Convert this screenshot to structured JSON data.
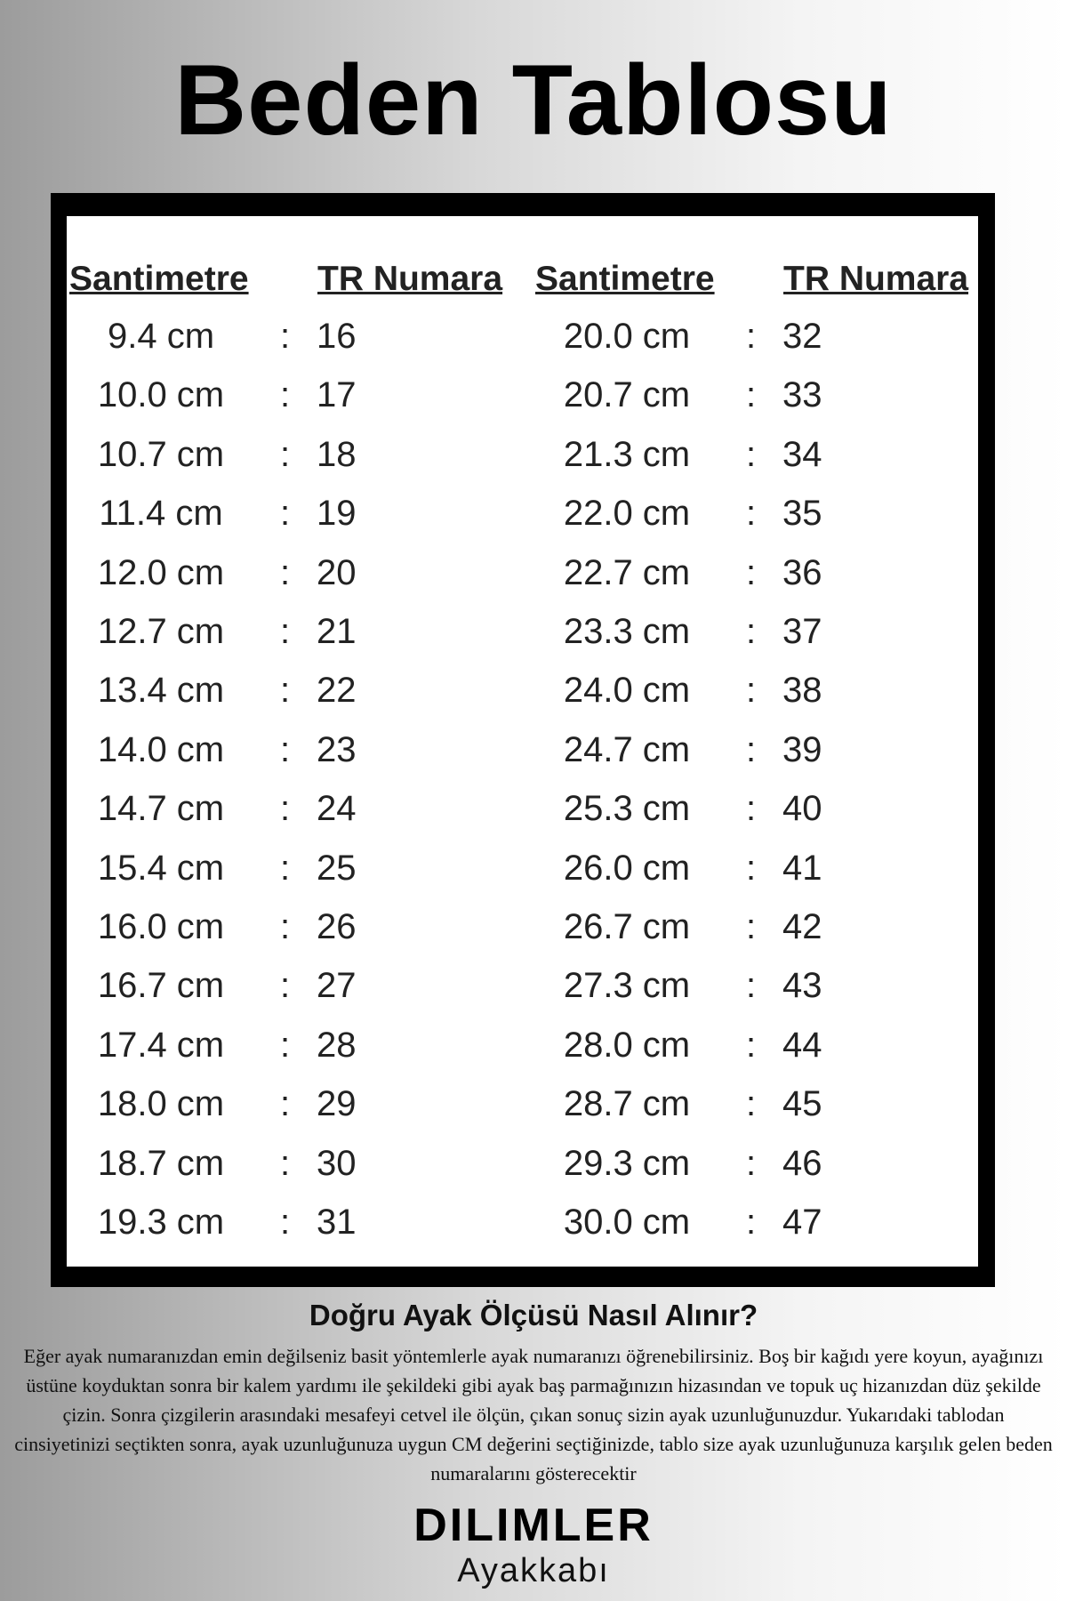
{
  "header": {
    "title": "Beden Tablosu"
  },
  "table": {
    "headers": [
      "Santimetre",
      "TR Numara",
      "Santimetre",
      "TR Numara"
    ],
    "separator": ":",
    "rows": [
      [
        "9.4 cm",
        "16",
        "20.0 cm",
        "32"
      ],
      [
        "10.0 cm",
        "17",
        "20.7 cm",
        "33"
      ],
      [
        "10.7 cm",
        "18",
        "21.3 cm",
        "34"
      ],
      [
        "11.4 cm",
        "19",
        "22.0 cm",
        "35"
      ],
      [
        "12.0 cm",
        "20",
        "22.7 cm",
        "36"
      ],
      [
        "12.7 cm",
        "21",
        "23.3 cm",
        "37"
      ],
      [
        "13.4 cm",
        "22",
        "24.0 cm",
        "38"
      ],
      [
        "14.0 cm",
        "23",
        "24.7 cm",
        "39"
      ],
      [
        "14.7 cm",
        "24",
        "25.3 cm",
        "40"
      ],
      [
        "15.4 cm",
        "25",
        "26.0 cm",
        "41"
      ],
      [
        "16.0 cm",
        "26",
        "26.7 cm",
        "42"
      ],
      [
        "16.7 cm",
        "27",
        "27.3 cm",
        "43"
      ],
      [
        "17.4 cm",
        "28",
        "28.0 cm",
        "44"
      ],
      [
        "18.0 cm",
        "29",
        "28.7 cm",
        "45"
      ],
      [
        "18.7 cm",
        "30",
        "29.3 cm",
        "46"
      ],
      [
        "19.3 cm",
        "31",
        "30.0 cm",
        "47"
      ]
    ]
  },
  "guide": {
    "title": "Doğru Ayak Ölçüsü Nasıl Alınır?",
    "text": "Eğer ayak numaranızdan emin değilseniz basit yöntemlerle ayak numaranızı öğrenebilirsiniz. Boş bir kağıdı yere koyun, ayağınızı üstüne koyduktan sonra bir kalem yardımı ile şekildeki gibi ayak baş parmağınızın hizasından ve topuk uç hizanızdan düz şekilde çizin. Sonra çizgilerin arasındaki mesafeyi cetvel ile ölçün, çıkan sonuç sizin ayak uzunluğunuzdur. Yukarıdaki tablodan cinsiyetinizi seçtikten sonra, ayak uzunluğunuza uygun CM değerini seçtiğinizde, tablo size ayak uzunluğunuza karşılık gelen beden numaralarını gösterecektir"
  },
  "logo": {
    "brand": "DILIMLER",
    "sub": "Ayakkabı"
  }
}
